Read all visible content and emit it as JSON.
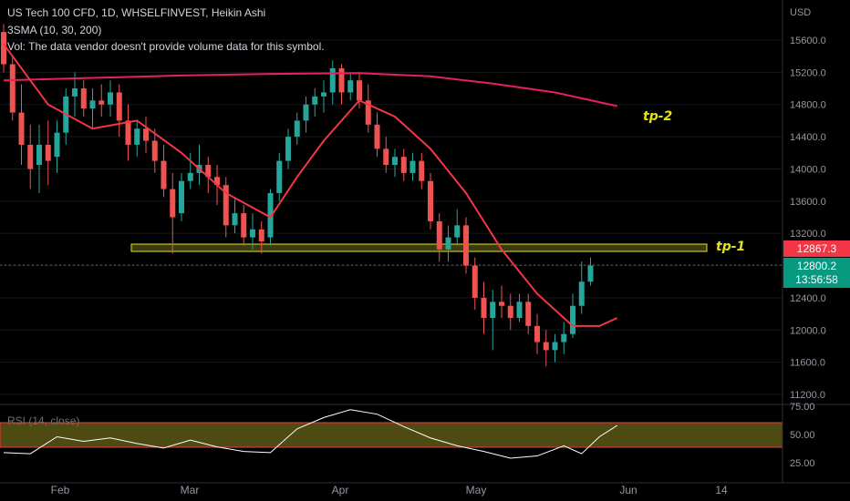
{
  "legend": {
    "title": "US Tech 100 CFD, 1D, WHSELFINVEST, Heikin Ashi",
    "sma": "3SMA (10, 30, 200)",
    "vol": "Vol: The data vendor doesn't provide volume data for this symbol.",
    "rsi": "RSI (14, close)"
  },
  "currency": "USD",
  "price_axis": [
    "15600.0",
    "15200.0",
    "14800.0",
    "14400.0",
    "14000.0",
    "13600.0",
    "13200.0",
    "12400.0",
    "12000.0",
    "11600.0",
    "11200.0"
  ],
  "rsi_axis": [
    "75.00",
    "50.00",
    "25.00"
  ],
  "time_axis": [
    "Feb",
    "Mar",
    "Apr",
    "May",
    "Jun",
    "14"
  ],
  "price_tags": {
    "last": "12867.3",
    "current": "12800.2",
    "countdown": "13:56:58"
  },
  "annotations": {
    "tp1": "tp-1",
    "tp2": "tp-2"
  },
  "colors": {
    "up": "#26a69a",
    "down": "#ef5350",
    "sma": "#f23645",
    "tp_line": "#e2e21a",
    "rsi_band": "#4d4a12",
    "rsi_line": "#ffffff"
  },
  "chart_data": {
    "type": "candlestick",
    "title": "US Tech 100 CFD, 1D, WHSELFINVEST, Heikin Ashi",
    "x_range": [
      "2022-01-17",
      "2022-06-14"
    ],
    "y_range": [
      11000,
      15900
    ],
    "candles": [
      {
        "o": 15700,
        "h": 15800,
        "l": 15200,
        "c": 15300
      },
      {
        "o": 15300,
        "h": 15400,
        "l": 14600,
        "c": 14700
      },
      {
        "o": 14700,
        "h": 15050,
        "l": 14050,
        "c": 14300
      },
      {
        "o": 14300,
        "h": 14550,
        "l": 13750,
        "c": 14000
      },
      {
        "o": 14050,
        "h": 14550,
        "l": 13700,
        "c": 14300
      },
      {
        "o": 14300,
        "h": 14600,
        "l": 13800,
        "c": 14100
      },
      {
        "o": 14150,
        "h": 14600,
        "l": 13950,
        "c": 14450
      },
      {
        "o": 14450,
        "h": 15000,
        "l": 14300,
        "c": 14900
      },
      {
        "o": 14900,
        "h": 15200,
        "l": 14650,
        "c": 15000
      },
      {
        "o": 15000,
        "h": 15100,
        "l": 14650,
        "c": 14750
      },
      {
        "o": 14750,
        "h": 15000,
        "l": 14500,
        "c": 14850
      },
      {
        "o": 14850,
        "h": 15050,
        "l": 14650,
        "c": 14800
      },
      {
        "o": 14800,
        "h": 15100,
        "l": 14650,
        "c": 14950
      },
      {
        "o": 14950,
        "h": 15050,
        "l": 14400,
        "c": 14600
      },
      {
        "o": 14600,
        "h": 14800,
        "l": 14100,
        "c": 14300
      },
      {
        "o": 14300,
        "h": 14600,
        "l": 14150,
        "c": 14500
      },
      {
        "o": 14500,
        "h": 14650,
        "l": 14200,
        "c": 14350
      },
      {
        "o": 14350,
        "h": 14500,
        "l": 13950,
        "c": 14100
      },
      {
        "o": 14100,
        "h": 14300,
        "l": 13650,
        "c": 13750
      },
      {
        "o": 13750,
        "h": 13950,
        "l": 12950,
        "c": 13400
      },
      {
        "o": 13450,
        "h": 13950,
        "l": 13350,
        "c": 13850
      },
      {
        "o": 13850,
        "h": 14200,
        "l": 13750,
        "c": 13950
      },
      {
        "o": 13950,
        "h": 14300,
        "l": 13800,
        "c": 14050
      },
      {
        "o": 14050,
        "h": 14150,
        "l": 13700,
        "c": 13900
      },
      {
        "o": 13900,
        "h": 14050,
        "l": 13550,
        "c": 13800
      },
      {
        "o": 13800,
        "h": 13900,
        "l": 13150,
        "c": 13300
      },
      {
        "o": 13300,
        "h": 13650,
        "l": 13200,
        "c": 13450
      },
      {
        "o": 13450,
        "h": 13550,
        "l": 13050,
        "c": 13150
      },
      {
        "o": 13150,
        "h": 13450,
        "l": 13000,
        "c": 13250
      },
      {
        "o": 13250,
        "h": 13350,
        "l": 12950,
        "c": 13100
      },
      {
        "o": 13150,
        "h": 13750,
        "l": 13050,
        "c": 13700
      },
      {
        "o": 13700,
        "h": 14200,
        "l": 13600,
        "c": 14100
      },
      {
        "o": 14100,
        "h": 14500,
        "l": 14000,
        "c": 14400
      },
      {
        "o": 14400,
        "h": 14700,
        "l": 14300,
        "c": 14600
      },
      {
        "o": 14600,
        "h": 14900,
        "l": 14450,
        "c": 14800
      },
      {
        "o": 14800,
        "h": 15000,
        "l": 14650,
        "c": 14900
      },
      {
        "o": 14900,
        "h": 15100,
        "l": 14700,
        "c": 14950
      },
      {
        "o": 14950,
        "h": 15350,
        "l": 14800,
        "c": 15250
      },
      {
        "o": 15250,
        "h": 15300,
        "l": 14800,
        "c": 14950
      },
      {
        "o": 14950,
        "h": 15200,
        "l": 14850,
        "c": 15100
      },
      {
        "o": 15100,
        "h": 15200,
        "l": 14750,
        "c": 14850
      },
      {
        "o": 14850,
        "h": 15050,
        "l": 14450,
        "c": 14550
      },
      {
        "o": 14550,
        "h": 14700,
        "l": 14150,
        "c": 14250
      },
      {
        "o": 14250,
        "h": 14400,
        "l": 13950,
        "c": 14050
      },
      {
        "o": 14050,
        "h": 14250,
        "l": 13900,
        "c": 14150
      },
      {
        "o": 14150,
        "h": 14250,
        "l": 13850,
        "c": 13950
      },
      {
        "o": 13950,
        "h": 14200,
        "l": 13850,
        "c": 14100
      },
      {
        "o": 14100,
        "h": 14200,
        "l": 13750,
        "c": 13850
      },
      {
        "o": 13850,
        "h": 13950,
        "l": 13250,
        "c": 13350
      },
      {
        "o": 13350,
        "h": 13450,
        "l": 12850,
        "c": 13000
      },
      {
        "o": 13000,
        "h": 13300,
        "l": 12850,
        "c": 13150
      },
      {
        "o": 13150,
        "h": 13500,
        "l": 13050,
        "c": 13300
      },
      {
        "o": 13300,
        "h": 13400,
        "l": 12700,
        "c": 12800
      },
      {
        "o": 12800,
        "h": 12900,
        "l": 12250,
        "c": 12400
      },
      {
        "o": 12400,
        "h": 12600,
        "l": 11950,
        "c": 12150
      },
      {
        "o": 12150,
        "h": 12500,
        "l": 11750,
        "c": 12350
      },
      {
        "o": 12350,
        "h": 12550,
        "l": 12150,
        "c": 12300
      },
      {
        "o": 12300,
        "h": 12450,
        "l": 12000,
        "c": 12150
      },
      {
        "o": 12150,
        "h": 12450,
        "l": 12100,
        "c": 12350
      },
      {
        "o": 12350,
        "h": 12450,
        "l": 11950,
        "c": 12050
      },
      {
        "o": 12050,
        "h": 12200,
        "l": 11700,
        "c": 11850
      },
      {
        "o": 11850,
        "h": 12000,
        "l": 11550,
        "c": 11750
      },
      {
        "o": 11750,
        "h": 11950,
        "l": 11600,
        "c": 11850
      },
      {
        "o": 11850,
        "h": 12100,
        "l": 11700,
        "c": 11950
      },
      {
        "o": 11950,
        "h": 12450,
        "l": 11900,
        "c": 12300
      },
      {
        "o": 12300,
        "h": 12850,
        "l": 12200,
        "c": 12600
      },
      {
        "o": 12600,
        "h": 12900,
        "l": 12550,
        "c": 12800
      }
    ],
    "sma_30": [
      [
        0,
        15550
      ],
      [
        5,
        14800
      ],
      [
        10,
        14500
      ],
      [
        15,
        14600
      ],
      [
        20,
        14200
      ],
      [
        25,
        13700
      ],
      [
        30,
        13400
      ],
      [
        33,
        13900
      ],
      [
        36,
        14350
      ],
      [
        40,
        14850
      ],
      [
        44,
        14650
      ],
      [
        48,
        14250
      ],
      [
        52,
        13700
      ],
      [
        56,
        13000
      ],
      [
        60,
        12450
      ],
      [
        64,
        12050
      ],
      [
        67,
        12050
      ],
      [
        69,
        12150
      ]
    ],
    "sma_200": [
      [
        0,
        15100
      ],
      [
        10,
        15130
      ],
      [
        20,
        15160
      ],
      [
        30,
        15180
      ],
      [
        40,
        15190
      ],
      [
        48,
        15150
      ],
      [
        55,
        15060
      ],
      [
        62,
        14950
      ],
      [
        69,
        14780
      ]
    ],
    "tp_levels": [
      12900,
      14800
    ],
    "rsi": [
      [
        0,
        34
      ],
      [
        3,
        33
      ],
      [
        6,
        48
      ],
      [
        9,
        44
      ],
      [
        12,
        47
      ],
      [
        15,
        42
      ],
      [
        18,
        38
      ],
      [
        21,
        45
      ],
      [
        24,
        39
      ],
      [
        27,
        35
      ],
      [
        30,
        34
      ],
      [
        33,
        55
      ],
      [
        36,
        65
      ],
      [
        39,
        72
      ],
      [
        42,
        68
      ],
      [
        45,
        57
      ],
      [
        48,
        47
      ],
      [
        51,
        40
      ],
      [
        54,
        35
      ],
      [
        57,
        29
      ],
      [
        60,
        31
      ],
      [
        63,
        40
      ],
      [
        65,
        33
      ],
      [
        67,
        48
      ],
      [
        69,
        58
      ]
    ]
  }
}
